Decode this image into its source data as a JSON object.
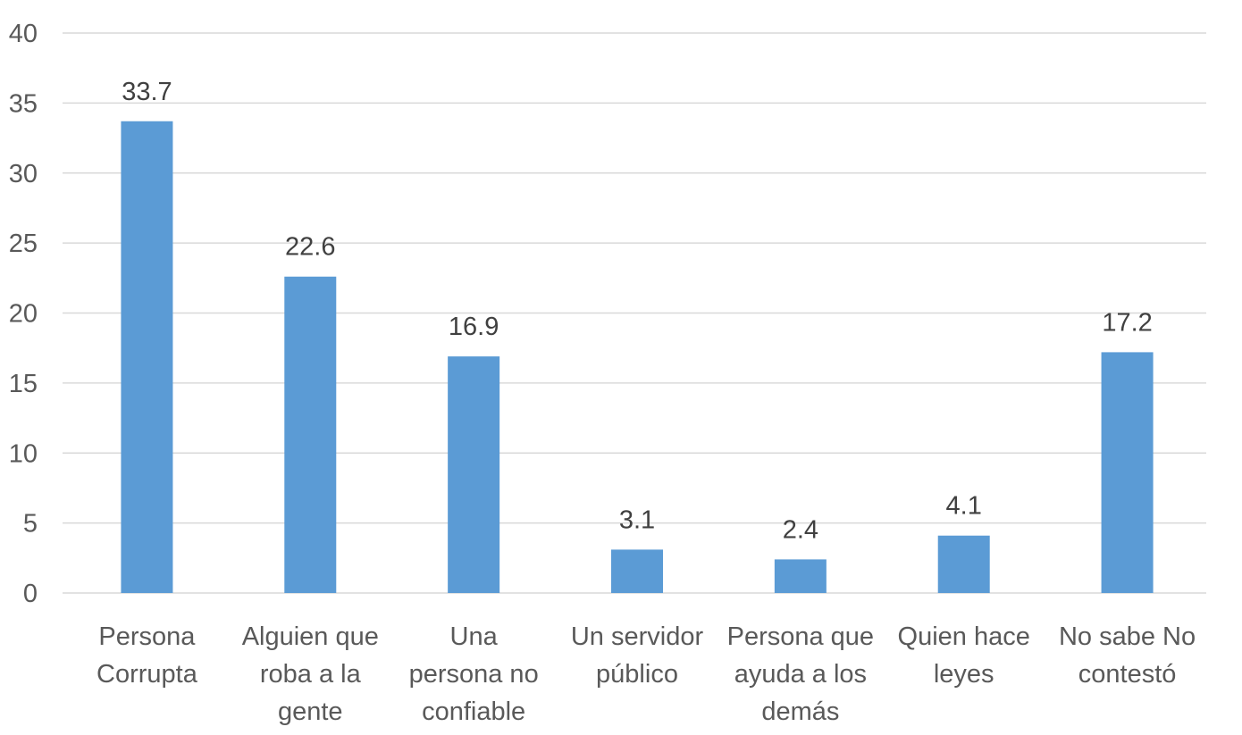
{
  "chart_data": {
    "type": "bar",
    "title": "",
    "xlabel": "",
    "ylabel": "",
    "ylim": [
      0,
      40
    ],
    "yticks": [
      0,
      5,
      10,
      15,
      20,
      25,
      30,
      35,
      40
    ],
    "grid": true,
    "legend": "none",
    "bar_color": "#5b9bd5",
    "categories": [
      [
        "Persona",
        "Corrupta"
      ],
      [
        "Alguien que",
        "roba a la",
        "gente"
      ],
      [
        "Una",
        "persona no",
        "confiable"
      ],
      [
        "Un servidor",
        "público"
      ],
      [
        "Persona que",
        "ayuda a los",
        "demás"
      ],
      [
        "Quien hace",
        "leyes"
      ],
      [
        "No sabe No",
        "contestó"
      ]
    ],
    "values": [
      33.7,
      22.6,
      16.9,
      3.1,
      2.4,
      4.1,
      17.2
    ],
    "value_labels": [
      "33.7",
      "22.6",
      "16.9",
      "3.1",
      "2.4",
      "4.1",
      "17.2"
    ]
  }
}
